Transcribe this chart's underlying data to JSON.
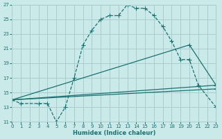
{
  "xlabel": "Humidex (Indice chaleur)",
  "xlim": [
    0,
    23
  ],
  "ylim": [
    11,
    27
  ],
  "yticks": [
    11,
    13,
    15,
    17,
    19,
    21,
    23,
    25,
    27
  ],
  "xticks": [
    0,
    1,
    2,
    3,
    4,
    5,
    6,
    7,
    8,
    9,
    10,
    11,
    12,
    13,
    14,
    15,
    16,
    17,
    18,
    19,
    20,
    21,
    22,
    23
  ],
  "bg_color": "#caeaea",
  "grid_color": "#aacccc",
  "line_color": "#1a7070",
  "series": [
    {
      "x": [
        0,
        1,
        3,
        4,
        5,
        6,
        7,
        8,
        9,
        10,
        11,
        12,
        13,
        14,
        15,
        16,
        17,
        18,
        19,
        20,
        21,
        23
      ],
      "y": [
        14,
        13.5,
        13.5,
        13.5,
        11,
        13,
        17,
        21.5,
        23.5,
        25,
        25.5,
        25.5,
        27,
        26.5,
        26.5,
        25.5,
        24,
        22,
        19.5,
        19.5,
        16,
        13
      ],
      "style": "--",
      "marker": "+"
    },
    {
      "x": [
        0,
        23
      ],
      "y": [
        14,
        16
      ],
      "style": "-",
      "marker": "+"
    },
    {
      "x": [
        0,
        23
      ],
      "y": [
        14,
        15.5
      ],
      "style": "-",
      "marker": "+"
    },
    {
      "x": [
        0,
        20,
        23
      ],
      "y": [
        14,
        21.5,
        16
      ],
      "style": "-",
      "marker": "+"
    }
  ]
}
